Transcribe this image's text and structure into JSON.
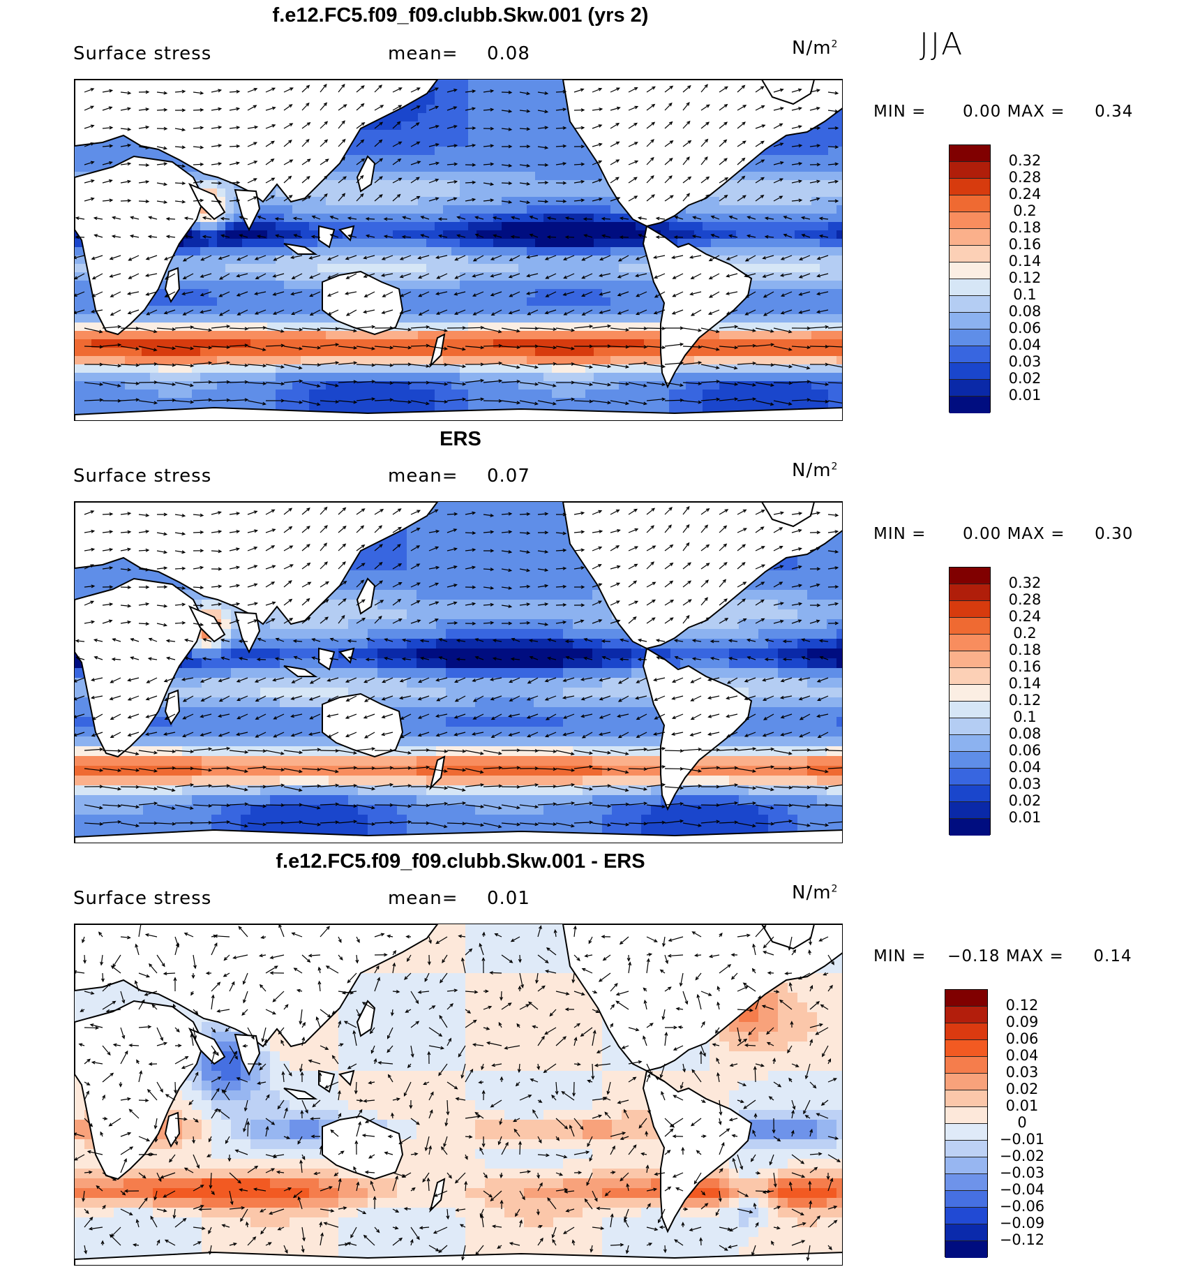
{
  "season": "JJA",
  "chart_data": [
    {
      "type": "heatmap",
      "title": "f.e12.FC5.f09_f09.clubb.Skw.001 (yrs 2)",
      "variable": "Surface stress",
      "mean_label": "mean=",
      "mean": "0.08",
      "units": "N/m",
      "units_exp": "2",
      "min_label": "MIN =",
      "min": "0.00",
      "max_label": "MAX =",
      "max": "0.34",
      "colorbar_levels": [
        "0.32",
        "0.28",
        "0.24",
        "0.2",
        "0.18",
        "0.16",
        "0.14",
        "0.12",
        "0.1",
        "0.08",
        "0.06",
        "0.04",
        "0.03",
        "0.02",
        "0.01"
      ],
      "colors": [
        "#800000",
        "#b01e0a",
        "#d73b0e",
        "#ef6a32",
        "#f88d5e",
        "#fbb08b",
        "#fcd0b6",
        "#fbeee3",
        "#d6e6f6",
        "#b4cdf3",
        "#8cb2f0",
        "#5f8ee8",
        "#3866e0",
        "#1a46cc",
        "#0a29a8",
        "#000d80"
      ],
      "vectors": "surface stress vectors"
    },
    {
      "type": "heatmap",
      "title": "ERS",
      "variable": "Surface stress",
      "mean_label": "mean=",
      "mean": "0.07",
      "units": "N/m",
      "units_exp": "2",
      "min_label": "MIN =",
      "min": "0.00",
      "max_label": "MAX =",
      "max": "0.30",
      "colorbar_levels": [
        "0.32",
        "0.28",
        "0.24",
        "0.2",
        "0.18",
        "0.16",
        "0.14",
        "0.12",
        "0.1",
        "0.08",
        "0.06",
        "0.04",
        "0.03",
        "0.02",
        "0.01"
      ],
      "colors": [
        "#800000",
        "#b01e0a",
        "#d73b0e",
        "#ef6a32",
        "#f88d5e",
        "#fbb08b",
        "#fcd0b6",
        "#fbeee3",
        "#d6e6f6",
        "#b4cdf3",
        "#8cb2f0",
        "#5f8ee8",
        "#3866e0",
        "#1a46cc",
        "#0a29a8",
        "#000d80"
      ],
      "vectors": "surface stress vectors"
    },
    {
      "type": "heatmap",
      "title": "f.e12.FC5.f09_f09.clubb.Skw.001 - ERS",
      "variable": "Surface stress",
      "mean_label": "mean=",
      "mean": "0.01",
      "units": "N/m",
      "units_exp": "2",
      "min_label": "MIN =",
      "min": "−0.18",
      "max_label": "MAX =",
      "max": "0.14",
      "colorbar_levels": [
        "0.12",
        "0.09",
        "0.06",
        "0.04",
        "0.03",
        "0.02",
        "0.01",
        "0",
        "−0.01",
        "−0.02",
        "−0.03",
        "−0.04",
        "−0.06",
        "−0.09",
        "−0.12"
      ],
      "colors": [
        "#800000",
        "#b31e0c",
        "#db3a10",
        "#f25a22",
        "#f57d4c",
        "#f8a27b",
        "#fbc7aa",
        "#fde8da",
        "#dfeaf8",
        "#bdd1f5",
        "#97b6f1",
        "#6e93ea",
        "#4670e2",
        "#214ad4",
        "#0a2aac",
        "#000d80"
      ],
      "vectors": "difference vectors"
    }
  ]
}
